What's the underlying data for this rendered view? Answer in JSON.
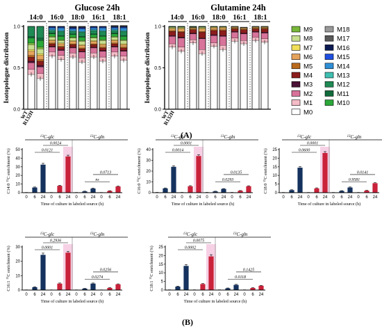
{
  "panel_labels": {
    "a": "(A)",
    "b": "(B)"
  },
  "chart_data": [
    {
      "type": "bar",
      "subtype": "stacked-isotopologue",
      "title": "Glucose 24h",
      "ylabel": "Isotopologue distribution",
      "ylim": [
        0,
        1.0
      ],
      "yticks": [
        "0.0",
        "0.5",
        "1.0"
      ],
      "groups": [
        "14:0",
        "16:0",
        "18:0",
        "16:1",
        "18:1"
      ],
      "genotypes": [
        "WT",
        "R132H"
      ],
      "stack_order": [
        "M0",
        "M1",
        "M2",
        "M3",
        "M4",
        "M5",
        "M6",
        "M7",
        "M8",
        "M9",
        "M10",
        "M11",
        "M12",
        "M13",
        "M14",
        "M15",
        "M16",
        "M17",
        "M18"
      ],
      "bars": [
        {
          "group": "14:0",
          "genotype": "WT",
          "values": {
            "M0": 0.42,
            "M1": 0.06,
            "M2": 0.08,
            "M3": 0.02,
            "M4": 0.05,
            "M5": 0.02,
            "M6": 0.05,
            "M7": 0.02,
            "M8": 0.06,
            "M9": 0.02,
            "M10": 0.06,
            "M11": 0.02,
            "M12": 0.12
          }
        },
        {
          "group": "14:0",
          "genotype": "R132H",
          "values": {
            "M0": 0.37,
            "M1": 0.06,
            "M2": 0.08,
            "M3": 0.02,
            "M4": 0.05,
            "M5": 0.02,
            "M6": 0.05,
            "M7": 0.02,
            "M8": 0.06,
            "M9": 0.02,
            "M10": 0.08,
            "M11": 0.03,
            "M12": 0.14
          }
        },
        {
          "group": "16:0",
          "genotype": "WT",
          "values": {
            "M0": 0.64,
            "M1": 0.05,
            "M2": 0.06,
            "M3": 0.01,
            "M4": 0.03,
            "M5": 0.01,
            "M6": 0.03,
            "M7": 0.01,
            "M8": 0.03,
            "M9": 0.01,
            "M10": 0.03,
            "M11": 0.01,
            "M12": 0.03,
            "M13": 0.01,
            "M14": 0.02,
            "M15": 0.01,
            "M16": 0.01
          }
        },
        {
          "group": "16:0",
          "genotype": "R132H",
          "values": {
            "M0": 0.6,
            "M1": 0.05,
            "M2": 0.06,
            "M3": 0.01,
            "M4": 0.03,
            "M5": 0.01,
            "M6": 0.03,
            "M7": 0.01,
            "M8": 0.03,
            "M9": 0.01,
            "M10": 0.04,
            "M11": 0.01,
            "M12": 0.05,
            "M13": 0.01,
            "M14": 0.03,
            "M15": 0.01,
            "M16": 0.01
          }
        },
        {
          "group": "18:0",
          "genotype": "WT",
          "values": {
            "M0": 0.63,
            "M1": 0.05,
            "M2": 0.06,
            "M3": 0.01,
            "M4": 0.03,
            "M5": 0.01,
            "M6": 0.03,
            "M7": 0.01,
            "M8": 0.03,
            "M9": 0.01,
            "M10": 0.03,
            "M11": 0.01,
            "M12": 0.03,
            "M13": 0.01,
            "M14": 0.02,
            "M15": 0.01,
            "M16": 0.01,
            "M17": 0.005,
            "M18": 0.005
          }
        },
        {
          "group": "18:0",
          "genotype": "R132H",
          "values": {
            "M0": 0.57,
            "M1": 0.05,
            "M2": 0.07,
            "M3": 0.01,
            "M4": 0.03,
            "M5": 0.01,
            "M6": 0.03,
            "M7": 0.01,
            "M8": 0.04,
            "M9": 0.01,
            "M10": 0.04,
            "M11": 0.01,
            "M12": 0.05,
            "M13": 0.01,
            "M14": 0.03,
            "M15": 0.01,
            "M16": 0.01,
            "M17": 0.005,
            "M18": 0.005
          }
        },
        {
          "group": "16:1",
          "genotype": "WT",
          "values": {
            "M0": 0.63,
            "M1": 0.05,
            "M2": 0.06,
            "M3": 0.01,
            "M4": 0.03,
            "M5": 0.01,
            "M6": 0.03,
            "M7": 0.01,
            "M8": 0.03,
            "M9": 0.01,
            "M10": 0.03,
            "M11": 0.01,
            "M12": 0.04,
            "M13": 0.01,
            "M14": 0.02,
            "M15": 0.01,
            "M16": 0.01
          }
        },
        {
          "group": "16:1",
          "genotype": "R132H",
          "values": {
            "M0": 0.58,
            "M1": 0.05,
            "M2": 0.07,
            "M3": 0.01,
            "M4": 0.03,
            "M5": 0.01,
            "M6": 0.03,
            "M7": 0.01,
            "M8": 0.04,
            "M9": 0.01,
            "M10": 0.04,
            "M11": 0.01,
            "M12": 0.05,
            "M13": 0.01,
            "M14": 0.03,
            "M15": 0.01,
            "M16": 0.01
          }
        },
        {
          "group": "18:1",
          "genotype": "WT",
          "values": {
            "M0": 0.64,
            "M1": 0.05,
            "M2": 0.06,
            "M3": 0.01,
            "M4": 0.03,
            "M5": 0.01,
            "M6": 0.03,
            "M7": 0.01,
            "M8": 0.03,
            "M9": 0.01,
            "M10": 0.03,
            "M11": 0.01,
            "M12": 0.03,
            "M13": 0.01,
            "M14": 0.02,
            "M15": 0.01,
            "M16": 0.01,
            "M17": 0.005,
            "M18": 0.005
          }
        },
        {
          "group": "18:1",
          "genotype": "R132H",
          "values": {
            "M0": 0.59,
            "M1": 0.05,
            "M2": 0.06,
            "M3": 0.01,
            "M4": 0.03,
            "M5": 0.01,
            "M6": 0.03,
            "M7": 0.01,
            "M8": 0.04,
            "M9": 0.01,
            "M10": 0.04,
            "M11": 0.01,
            "M12": 0.05,
            "M13": 0.01,
            "M14": 0.03,
            "M15": 0.01,
            "M16": 0.01,
            "M17": 0.005,
            "M18": 0.005
          }
        }
      ]
    },
    {
      "type": "bar",
      "subtype": "stacked-isotopologue",
      "title": "Glutamine 24h",
      "ylabel": "Isotopologue distribution",
      "ylim": [
        0,
        1.0
      ],
      "yticks": [
        "0.0",
        "0.5",
        "1.0"
      ],
      "groups": [
        "14:0",
        "16:0",
        "18:0",
        "16:1",
        "18:1"
      ],
      "genotypes": [
        "WT",
        "R132H"
      ],
      "stack_order": [
        "M0",
        "M1",
        "M2",
        "M3",
        "M4",
        "M5",
        "M6",
        "M7",
        "M8",
        "M9",
        "M10",
        "M11",
        "M12",
        "M13",
        "M14",
        "M15",
        "M16",
        "M17",
        "M18"
      ],
      "bars": [
        {
          "group": "14:0",
          "genotype": "WT",
          "values": {
            "M0": 0.75,
            "M1": 0.04,
            "M2": 0.09,
            "M3": 0.01,
            "M4": 0.05,
            "M5": 0.01,
            "M6": 0.02,
            "M7": 0.01,
            "M8": 0.01,
            "M9": 0.005,
            "M10": 0.005
          }
        },
        {
          "group": "14:0",
          "genotype": "R132H",
          "values": {
            "M0": 0.7,
            "M1": 0.05,
            "M2": 0.11,
            "M3": 0.01,
            "M4": 0.06,
            "M5": 0.01,
            "M6": 0.03,
            "M7": 0.01,
            "M8": 0.01,
            "M9": 0.005,
            "M10": 0.005
          }
        },
        {
          "group": "16:0",
          "genotype": "WT",
          "values": {
            "M0": 0.8,
            "M1": 0.04,
            "M2": 0.07,
            "M3": 0.01,
            "M4": 0.04,
            "M5": 0.01,
            "M6": 0.01,
            "M7": 0.005,
            "M8": 0.005,
            "M9": 0.005,
            "M10": 0.005
          }
        },
        {
          "group": "16:0",
          "genotype": "R132H",
          "values": {
            "M0": 0.67,
            "M1": 0.05,
            "M2": 0.13,
            "M3": 0.01,
            "M4": 0.07,
            "M5": 0.01,
            "M6": 0.03,
            "M7": 0.01,
            "M8": 0.01,
            "M9": 0.005,
            "M10": 0.005
          }
        },
        {
          "group": "18:0",
          "genotype": "WT",
          "values": {
            "M0": 0.76,
            "M1": 0.04,
            "M2": 0.09,
            "M3": 0.01,
            "M4": 0.05,
            "M5": 0.01,
            "M6": 0.02,
            "M7": 0.01,
            "M8": 0.005,
            "M9": 0.005
          }
        },
        {
          "group": "18:0",
          "genotype": "R132H",
          "values": {
            "M0": 0.72,
            "M1": 0.05,
            "M2": 0.11,
            "M3": 0.01,
            "M4": 0.06,
            "M5": 0.01,
            "M6": 0.02,
            "M7": 0.01,
            "M8": 0.005,
            "M9": 0.005
          }
        },
        {
          "group": "16:1",
          "genotype": "WT",
          "values": {
            "M0": 0.82,
            "M1": 0.04,
            "M2": 0.07,
            "M3": 0.01,
            "M4": 0.03,
            "M5": 0.01,
            "M6": 0.01,
            "M7": 0.005,
            "M8": 0.005
          }
        },
        {
          "group": "16:1",
          "genotype": "R132H",
          "values": {
            "M0": 0.79,
            "M1": 0.04,
            "M2": 0.08,
            "M3": 0.01,
            "M4": 0.04,
            "M5": 0.01,
            "M6": 0.01,
            "M7": 0.005,
            "M8": 0.005
          }
        },
        {
          "group": "18:1",
          "genotype": "WT",
          "values": {
            "M0": 0.83,
            "M1": 0.04,
            "M2": 0.06,
            "M3": 0.01,
            "M4": 0.03,
            "M5": 0.01,
            "M6": 0.01,
            "M7": 0.005,
            "M8": 0.005
          }
        },
        {
          "group": "18:1",
          "genotype": "R132H",
          "values": {
            "M0": 0.81,
            "M1": 0.04,
            "M2": 0.07,
            "M3": 0.01,
            "M4": 0.04,
            "M5": 0.01,
            "M6": 0.01,
            "M7": 0.005,
            "M8": 0.005
          }
        }
      ],
      "legend": [
        {
          "label": "M9",
          "color": "#78b83a"
        },
        {
          "label": "M8",
          "color": "#c7df8f"
        },
        {
          "label": "M7",
          "color": "#f2df5a"
        },
        {
          "label": "M6",
          "color": "#e6a35c"
        },
        {
          "label": "M5",
          "color": "#b96a1c"
        },
        {
          "label": "M4",
          "color": "#8c1d1d"
        },
        {
          "label": "M3",
          "color": "#4a1236"
        },
        {
          "label": "M2",
          "color": "#d8739a"
        },
        {
          "label": "M1",
          "color": "#f4bcc6"
        },
        {
          "label": "M0",
          "color": "#ffffff"
        },
        {
          "label": "M18",
          "color": "#999999"
        },
        {
          "label": "M17",
          "color": "#595959"
        },
        {
          "label": "M16",
          "color": "#0d1a52"
        },
        {
          "label": "M15",
          "color": "#1f4fe0"
        },
        {
          "label": "M14",
          "color": "#2f8fd6"
        },
        {
          "label": "M13",
          "color": "#3fbfb0"
        },
        {
          "label": "M12",
          "color": "#1f8a54"
        },
        {
          "label": "M11",
          "color": "#116b3a"
        },
        {
          "label": "M10",
          "color": "#2aa838"
        }
      ]
    },
    {
      "type": "bar",
      "title": "",
      "ylabel": "C14:0 13C enrichment (%)",
      "xlabel": "Time of culture in labeled source (h)",
      "ylim": [
        0,
        50
      ],
      "yticks": [
        "0",
        "10",
        "20",
        "30",
        "40",
        "50"
      ],
      "categories": [
        "0",
        "6",
        "24",
        "0",
        "6",
        "24",
        "0",
        "6",
        "24",
        "0",
        "6",
        "24"
      ],
      "source_labels": [
        "13C-glc",
        "13C-gln"
      ],
      "values": [
        0.2,
        6.0,
        32.5,
        0.2,
        8.0,
        42.0,
        0.2,
        1.5,
        4.8,
        0.2,
        2.0,
        7.2
      ],
      "errors": [
        0.1,
        0.6,
        1.5,
        0.1,
        0.6,
        1.5,
        0.1,
        0.3,
        0.4,
        0.1,
        0.3,
        0.5
      ],
      "pvalues": [
        {
          "label": "0.0024"
        },
        {
          "label": "0.0121"
        },
        {
          "label": "0.0713"
        },
        {
          "label": "ns"
        }
      ]
    },
    {
      "type": "bar",
      "title": "",
      "ylabel": "C16:0 13C enrichment (%)",
      "xlabel": "Time of culture in labeled source (h)",
      "ylim": [
        0,
        40
      ],
      "yticks": [
        "0",
        "10",
        "20",
        "30",
        "40"
      ],
      "categories": [
        "0",
        "6",
        "24",
        "0",
        "6",
        "24",
        "0",
        "6",
        "24",
        "0",
        "6",
        "24"
      ],
      "source_labels": [
        "13C-glc",
        "13C-gln"
      ],
      "values": [
        0.2,
        4.0,
        24.0,
        0.2,
        6.0,
        34.0,
        0.2,
        1.2,
        3.5,
        0.2,
        1.8,
        6.0
      ],
      "errors": [
        0.1,
        0.4,
        1.0,
        0.1,
        0.5,
        1.2,
        0.1,
        0.2,
        0.3,
        0.1,
        0.2,
        0.4
      ],
      "pvalues": [
        {
          "label": "0.0001"
        },
        {
          "label": "0.0014"
        },
        {
          "label": "0.0135"
        },
        {
          "label": "0.0293"
        }
      ]
    },
    {
      "type": "bar",
      "title": "",
      "ylabel": "C18:0 13C enrichment (%)",
      "xlabel": "Time of culture in labeled source (h)",
      "ylim": [
        0,
        25
      ],
      "yticks": [
        "0",
        "5",
        "10",
        "15",
        "20",
        "25"
      ],
      "categories": [
        "0",
        "6",
        "24",
        "0",
        "6",
        "24",
        "0",
        "6",
        "24",
        "0",
        "6",
        "24"
      ],
      "source_labels": [
        "13C-glc",
        "13C-gln"
      ],
      "values": [
        0.1,
        1.5,
        14.5,
        0.1,
        2.5,
        23.0,
        0.1,
        1.0,
        3.0,
        0.1,
        1.2,
        5.5
      ],
      "errors": [
        0.05,
        0.2,
        0.6,
        0.05,
        0.3,
        0.8,
        0.05,
        0.2,
        0.3,
        0.05,
        0.2,
        0.3
      ],
      "pvalues": [
        {
          "label": "0.0001"
        },
        {
          "label": "0.0600"
        },
        {
          "label": "0.0141"
        },
        {
          "label": "0.9581"
        }
      ]
    },
    {
      "type": "bar",
      "title": "",
      "ylabel": "C16:1 13C enrichment (%)",
      "xlabel": "Time of culture in labeled source (h)",
      "ylim": [
        0,
        30
      ],
      "yticks": [
        "0",
        "10",
        "20",
        "30"
      ],
      "categories": [
        "0",
        "6",
        "24",
        "0",
        "6",
        "24",
        "0",
        "6",
        "24",
        "0",
        "6",
        "24"
      ],
      "source_labels": [
        "13C-glc",
        "13C-gln"
      ],
      "values": [
        0.1,
        2.0,
        24.5,
        0.1,
        4.5,
        26.0,
        0.1,
        1.0,
        4.5,
        0.1,
        1.5,
        4.0
      ],
      "errors": [
        0.05,
        0.3,
        1.2,
        0.05,
        0.4,
        0.8,
        0.05,
        0.2,
        0.4,
        0.05,
        0.2,
        0.3
      ],
      "pvalues": [
        {
          "label": "0.2936"
        },
        {
          "label": "0.0001"
        },
        {
          "label": "0.0256"
        },
        {
          "label": "0.0274"
        }
      ]
    },
    {
      "type": "bar",
      "title": "",
      "ylabel": "C18:1 13C enrichment (%)",
      "xlabel": "Time of culture in labeled source (h)",
      "ylim": [
        0,
        25
      ],
      "yticks": [
        "0",
        "5",
        "10",
        "15",
        "20",
        "25"
      ],
      "categories": [
        "0",
        "6",
        "24",
        "0",
        "6",
        "24",
        "0",
        "6",
        "24",
        "0",
        "6",
        "24"
      ],
      "source_labels": [
        "13C-glc",
        "13C-gln"
      ],
      "values": [
        0.1,
        2.0,
        14.0,
        0.1,
        3.5,
        19.5,
        0.1,
        1.0,
        3.0,
        0.1,
        1.2,
        2.5
      ],
      "errors": [
        0.05,
        0.3,
        0.8,
        0.05,
        0.3,
        1.0,
        0.05,
        0.2,
        0.3,
        0.05,
        0.2,
        0.2
      ],
      "pvalues": [
        {
          "label": "0.0075"
        },
        {
          "label": "0.0002"
        },
        {
          "label": "0.1425"
        },
        {
          "label": "0.0118"
        }
      ]
    }
  ],
  "style": {
    "wt_color": "#15325e",
    "mut_color": "#c9223a",
    "highlight_color": "#f4c6df",
    "divider_color": "#9a9a9a"
  }
}
